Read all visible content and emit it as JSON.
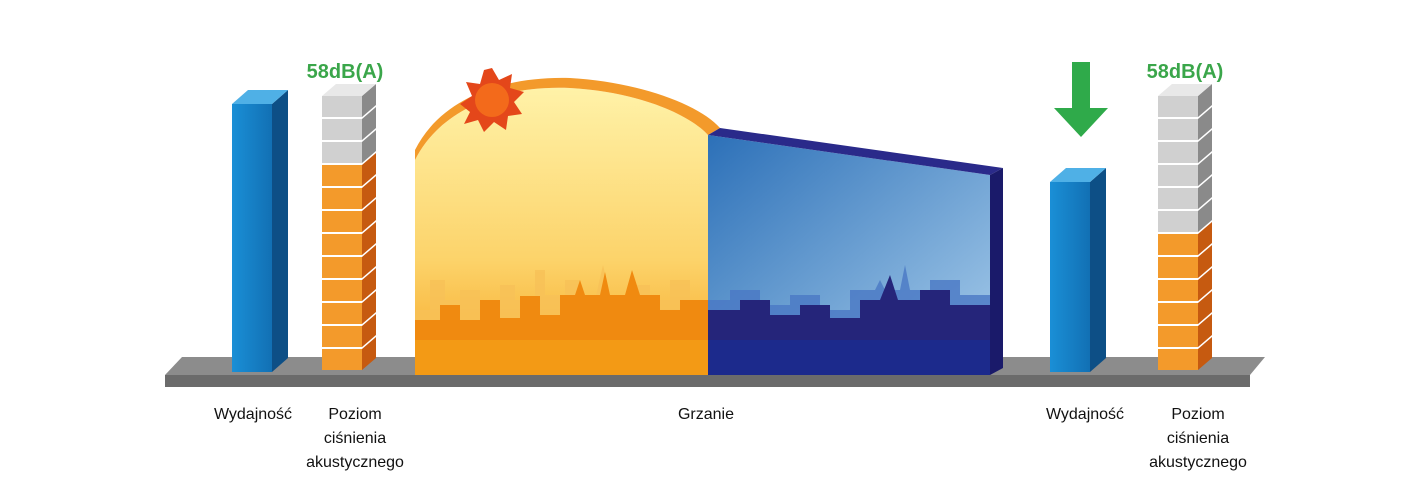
{
  "left": {
    "noise_label": "58dB(A)",
    "capacity_label": "Wydajność",
    "pressure_label": [
      "Poziom",
      "ciśnienia",
      "akustycznego"
    ]
  },
  "center": {
    "label": "Grzanie"
  },
  "right": {
    "noise_label": "58dB(A)",
    "capacity_label": "Wydajność",
    "pressure_label": [
      "Poziom",
      "ciśnienia",
      "akustycznego"
    ]
  }
}
